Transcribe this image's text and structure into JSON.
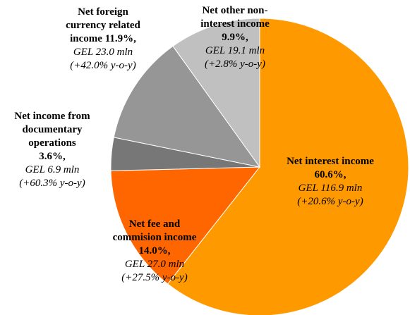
{
  "chart_data": {
    "type": "pie",
    "categories": [
      "Net interest income",
      "Net fee and commision income",
      "Net income from documentary operations",
      "Net foreign currency related income",
      "Net other non-interest income"
    ],
    "values": [
      60.6,
      14.0,
      3.6,
      11.9,
      9.9
    ],
    "value_labels": [
      "60.6%,",
      "14.0%,",
      "3.6%,",
      "11.9%,",
      "9.9%,"
    ],
    "amounts": [
      "GEL 116.9 mln",
      "GEL 27.0  mln",
      "GEL 6.9 mln",
      "GEL 23.0 mln",
      "GEL 19.1 mln"
    ],
    "changes": [
      "(+20.6% y-o-y)",
      "(+27.5% y-o-y)",
      "(+60.3% y-o-y)",
      "(+42.0% y-o-y)",
      "(+2.8% y-o-y)"
    ],
    "colors": [
      "#FF9900",
      "#FF6600",
      "#777777",
      "#969696",
      "#C0C0C0"
    ]
  }
}
